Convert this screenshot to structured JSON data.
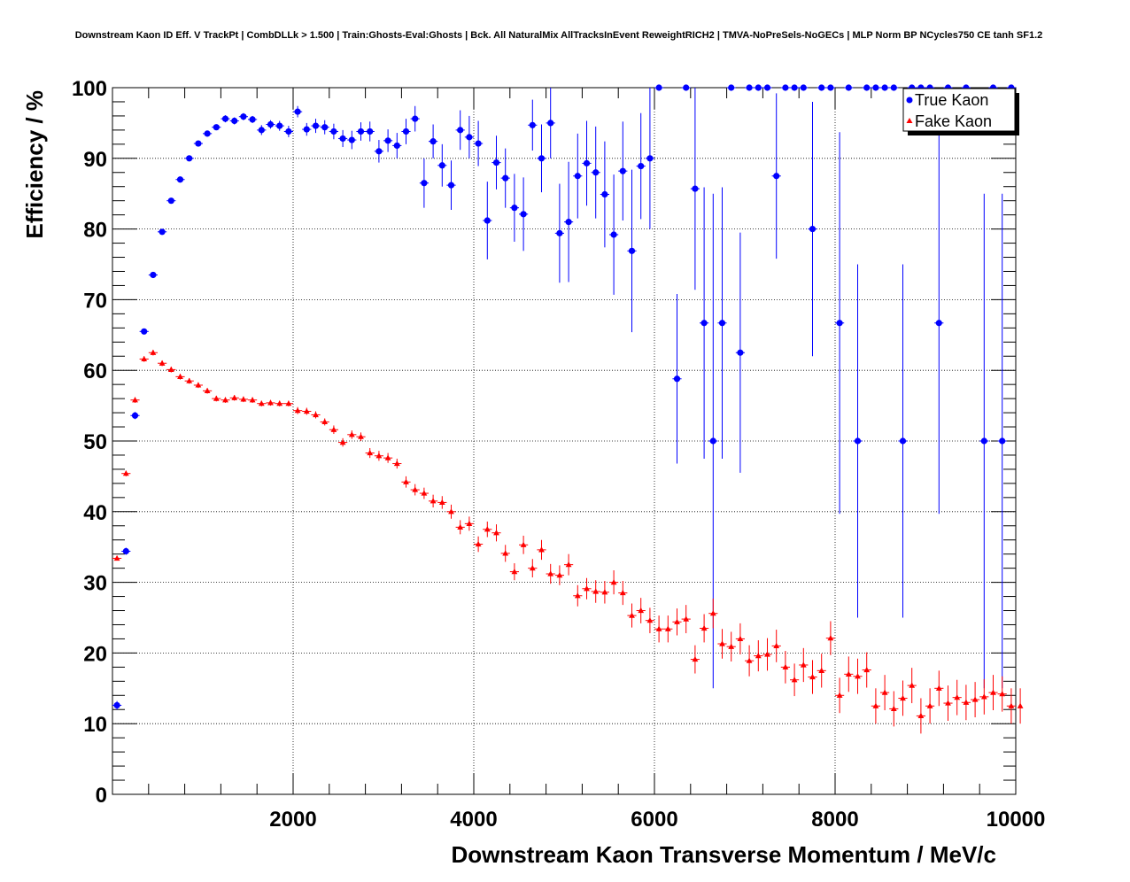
{
  "chart_data": {
    "type": "scatter",
    "title": "Downstream Kaon ID Eff. V TrackPt | CombDLLk > 1.500 | Train:Ghosts-Eval:Ghosts | Bck. All NaturalMix AllTracksInEvent ReweightRICH2 | TMVA-NoPreSels-NoGECs | MLP Norm BP NCycles750 CE tanh SF1.2",
    "xlabel": "Downstream Kaon Transverse Momentum / MeV/c",
    "ylabel": "Efficiency / %",
    "xlim": [
      0,
      10000
    ],
    "ylim": [
      0,
      100
    ],
    "xticks": [
      2000,
      4000,
      6000,
      8000,
      10000
    ],
    "yticks": [
      0,
      10,
      20,
      30,
      40,
      50,
      60,
      70,
      80,
      90,
      100
    ],
    "grid": true,
    "legend": "top-right",
    "bin_half_width": 50,
    "series": [
      {
        "name": "True Kaon",
        "color": "#0000ff",
        "marker": "circle",
        "x": [
          50,
          150,
          250,
          350,
          450,
          550,
          650,
          750,
          850,
          950,
          1050,
          1150,
          1250,
          1350,
          1450,
          1550,
          1650,
          1750,
          1850,
          1950,
          2050,
          2150,
          2250,
          2350,
          2450,
          2550,
          2650,
          2750,
          2850,
          2950,
          3050,
          3150,
          3250,
          3350,
          3450,
          3550,
          3650,
          3750,
          3850,
          3950,
          4050,
          4150,
          4250,
          4350,
          4450,
          4550,
          4650,
          4750,
          4850,
          4950,
          5050,
          5150,
          5250,
          5350,
          5450,
          5550,
          5650,
          5750,
          5850,
          5950,
          6050,
          6250,
          6350,
          6450,
          6550,
          6650,
          6750,
          6850,
          6950,
          7050,
          7150,
          7250,
          7350,
          7450,
          7550,
          7650,
          7750,
          7850,
          7950,
          8050,
          8150,
          8250,
          8350,
          8450,
          8550,
          8650,
          8750,
          8850,
          8950,
          9050,
          9150,
          9250,
          9450,
          9650,
          9750,
          9850,
          9950
        ],
        "y": [
          12.6,
          34.4,
          53.6,
          65.5,
          73.5,
          79.6,
          84.0,
          87.0,
          90.0,
          92.1,
          93.5,
          94.4,
          95.6,
          95.3,
          95.9,
          95.5,
          94.0,
          94.8,
          94.6,
          93.8,
          96.6,
          94.1,
          94.6,
          94.4,
          93.8,
          92.8,
          92.6,
          93.8,
          93.8,
          91.0,
          92.5,
          91.8,
          93.8,
          95.6,
          86.5,
          92.4,
          89.0,
          86.2,
          94.0,
          93.0,
          92.1,
          81.2,
          89.4,
          87.2,
          83.0,
          82.1,
          94.7,
          90.0,
          95.0,
          79.4,
          81.0,
          87.5,
          89.3,
          88.0,
          84.9,
          79.2,
          88.2,
          76.9,
          88.9,
          90.0,
          100,
          58.8,
          100,
          85.7,
          66.7,
          50.0,
          66.7,
          100,
          62.5,
          100,
          100,
          100,
          87.5,
          100,
          100,
          100,
          80.0,
          100,
          100,
          66.7,
          100,
          50.0,
          100,
          100,
          100,
          100,
          50.0,
          100,
          100,
          100,
          66.7,
          100,
          100,
          50.0,
          100,
          50.0,
          100
        ],
        "yerr": [
          0.6,
          0.5,
          0.5,
          0.4,
          0.4,
          0.4,
          0.4,
          0.4,
          0.4,
          0.4,
          0.4,
          0.4,
          0.5,
          0.5,
          0.5,
          0.5,
          0.7,
          0.6,
          0.7,
          0.8,
          0.8,
          0.9,
          1.0,
          1.0,
          1.1,
          1.2,
          1.3,
          1.3,
          1.4,
          1.6,
          1.6,
          1.8,
          1.8,
          1.8,
          3.5,
          2.4,
          3.0,
          3.5,
          2.8,
          3.0,
          3.2,
          5.5,
          3.8,
          4.2,
          4.8,
          5.2,
          3.6,
          4.8,
          5.0,
          7.0,
          8.5,
          6.0,
          6.0,
          6.5,
          7.5,
          8.5,
          7.0,
          11.5,
          7.5,
          10.0,
          0,
          12.0,
          0,
          14.3,
          19.2,
          35.0,
          19.2,
          0,
          17.0,
          0,
          0,
          0,
          11.7,
          0,
          0,
          0,
          18.0,
          0,
          0,
          27.0,
          0,
          25.0,
          0,
          0,
          0,
          0,
          25.0,
          0,
          0,
          0,
          27.0,
          0,
          0,
          35.0,
          0,
          35.0,
          0
        ]
      },
      {
        "name": "Fake Kaon",
        "color": "#ff0000",
        "marker": "triangle",
        "x": [
          50,
          150,
          250,
          350,
          450,
          550,
          650,
          750,
          850,
          950,
          1050,
          1150,
          1250,
          1350,
          1450,
          1550,
          1650,
          1750,
          1850,
          1950,
          2050,
          2150,
          2250,
          2350,
          2450,
          2550,
          2650,
          2750,
          2850,
          2950,
          3050,
          3150,
          3250,
          3350,
          3450,
          3550,
          3650,
          3750,
          3850,
          3950,
          4050,
          4150,
          4250,
          4350,
          4450,
          4550,
          4650,
          4750,
          4850,
          4950,
          5050,
          5150,
          5250,
          5350,
          5450,
          5550,
          5650,
          5750,
          5850,
          5950,
          6050,
          6150,
          6250,
          6350,
          6450,
          6550,
          6650,
          6750,
          6850,
          6950,
          7050,
          7150,
          7250,
          7350,
          7450,
          7550,
          7650,
          7750,
          7850,
          7950,
          8050,
          8150,
          8250,
          8350,
          8450,
          8550,
          8650,
          8750,
          8850,
          8950,
          9050,
          9150,
          9250,
          9350,
          9450,
          9550,
          9650,
          9750,
          9850,
          9950,
          10050
        ],
        "y": [
          33.4,
          45.4,
          55.8,
          61.6,
          62.5,
          61.0,
          60.1,
          59.1,
          58.5,
          57.9,
          57.1,
          56.0,
          55.8,
          56.1,
          55.9,
          55.8,
          55.3,
          55.4,
          55.3,
          55.3,
          54.3,
          54.2,
          53.7,
          52.7,
          51.6,
          49.8,
          50.9,
          50.6,
          48.3,
          47.9,
          47.6,
          46.8,
          44.2,
          43.1,
          42.6,
          41.5,
          41.3,
          40.0,
          37.8,
          38.3,
          35.4,
          37.5,
          37.0,
          34.1,
          31.5,
          35.3,
          32.0,
          34.6,
          31.2,
          31.0,
          32.5,
          28.1,
          29.1,
          28.7,
          28.6,
          30.0,
          28.5,
          25.3,
          26.0,
          24.6,
          23.4,
          23.4,
          24.4,
          24.8,
          19.1,
          23.5,
          25.6,
          21.3,
          20.9,
          22.0,
          18.9,
          19.6,
          19.8,
          21.0,
          18.0,
          16.2,
          18.3,
          16.6,
          17.5,
          22.1,
          14.0,
          17.0,
          16.7,
          17.6,
          12.5,
          14.4,
          12.1,
          13.6,
          15.4,
          11.1,
          12.5,
          15.0,
          12.9,
          13.7,
          13.0,
          13.4,
          13.8,
          14.4,
          14.2,
          12.5,
          12.5
        ],
        "yerr": [
          0.3,
          0.4,
          0.4,
          0.4,
          0.4,
          0.4,
          0.4,
          0.4,
          0.4,
          0.4,
          0.4,
          0.4,
          0.4,
          0.4,
          0.4,
          0.4,
          0.4,
          0.4,
          0.4,
          0.4,
          0.5,
          0.5,
          0.5,
          0.5,
          0.6,
          0.6,
          0.6,
          0.6,
          0.7,
          0.7,
          0.7,
          0.7,
          0.8,
          0.8,
          0.8,
          0.9,
          0.9,
          1.0,
          1.0,
          1.0,
          1.1,
          1.1,
          1.2,
          1.2,
          1.2,
          1.3,
          1.3,
          1.4,
          1.4,
          1.4,
          1.5,
          1.5,
          1.5,
          1.6,
          1.6,
          1.7,
          1.7,
          1.7,
          1.8,
          1.8,
          1.9,
          1.9,
          1.9,
          2.0,
          2.0,
          2.0,
          2.1,
          2.1,
          2.1,
          2.2,
          2.2,
          2.2,
          2.3,
          2.3,
          2.3,
          2.3,
          2.4,
          2.4,
          2.4,
          2.4,
          2.5,
          2.5,
          2.5,
          2.5,
          2.5,
          2.5,
          2.5,
          2.5,
          2.5,
          2.5,
          2.5,
          2.5,
          2.5,
          2.5,
          2.5,
          2.5,
          2.5,
          2.5,
          2.5,
          2.5,
          2.5
        ]
      }
    ]
  }
}
